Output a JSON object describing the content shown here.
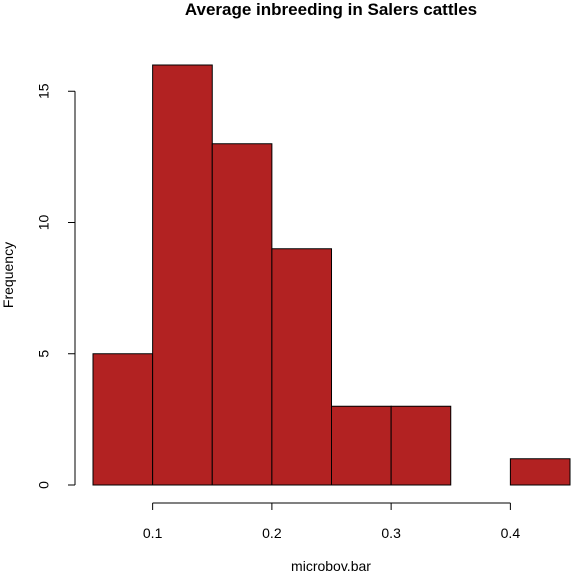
{
  "chart_data": {
    "type": "bar",
    "title": "Average inbreeding in Salers cattles",
    "xlabel": "microbov.bar",
    "ylabel": "Frequency",
    "bins": [
      {
        "from": 0.05,
        "to": 0.1,
        "count": 5
      },
      {
        "from": 0.1,
        "to": 0.15,
        "count": 16
      },
      {
        "from": 0.15,
        "to": 0.2,
        "count": 13
      },
      {
        "from": 0.2,
        "to": 0.25,
        "count": 9
      },
      {
        "from": 0.25,
        "to": 0.3,
        "count": 3
      },
      {
        "from": 0.3,
        "to": 0.35,
        "count": 3
      },
      {
        "from": 0.35,
        "to": 0.4,
        "count": 0
      },
      {
        "from": 0.4,
        "to": 0.45,
        "count": 1
      }
    ],
    "x_ticks": [
      {
        "value": 0.1,
        "label": "0.1"
      },
      {
        "value": 0.2,
        "label": "0.2"
      },
      {
        "value": 0.3,
        "label": "0.3"
      },
      {
        "value": 0.4,
        "label": "0.4"
      }
    ],
    "y_ticks": [
      {
        "value": 0,
        "label": "0"
      },
      {
        "value": 5,
        "label": "5"
      },
      {
        "value": 10,
        "label": "10"
      },
      {
        "value": 15,
        "label": "15"
      }
    ],
    "xlim": [
      0.05,
      0.45
    ],
    "ylim": [
      0,
      16
    ],
    "bar_color": "#b22222",
    "edge_color": "#000000",
    "grid": false,
    "legend": "none"
  }
}
